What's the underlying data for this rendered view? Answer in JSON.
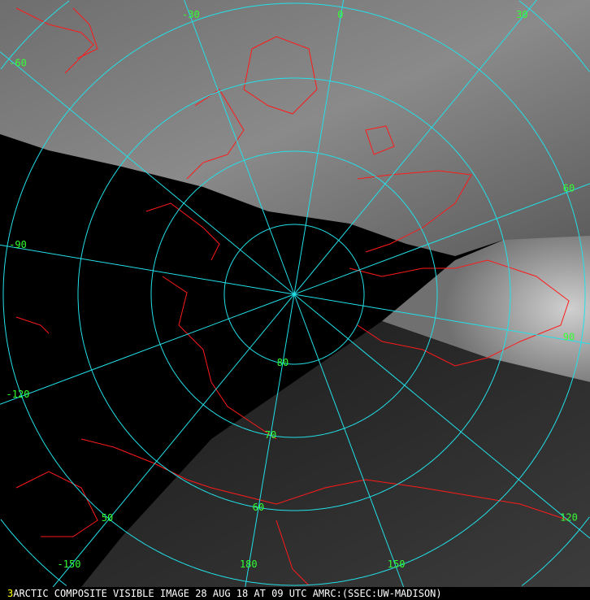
{
  "caption": {
    "frame_number": "3",
    "text": "ARCTIC COMPOSITE VISIBLE IMAGE 28 AUG 18 AT 09 UTC AMRC:(SSEC:UW-MADISON)"
  },
  "projection": "polar-stereographic-north",
  "latitude_labels": [
    "80",
    "70",
    "60",
    "50"
  ],
  "longitude_labels": [
    "0",
    "30",
    "60",
    "90",
    "120",
    "150",
    "180",
    "-150",
    "-120",
    "-90",
    "-60",
    "-30"
  ],
  "colors": {
    "graticule": "#22e0e8",
    "coastline": "#ff1a1a",
    "label": "#33ff33",
    "frame_number": "#ffff00",
    "caption": "#ffffff"
  }
}
